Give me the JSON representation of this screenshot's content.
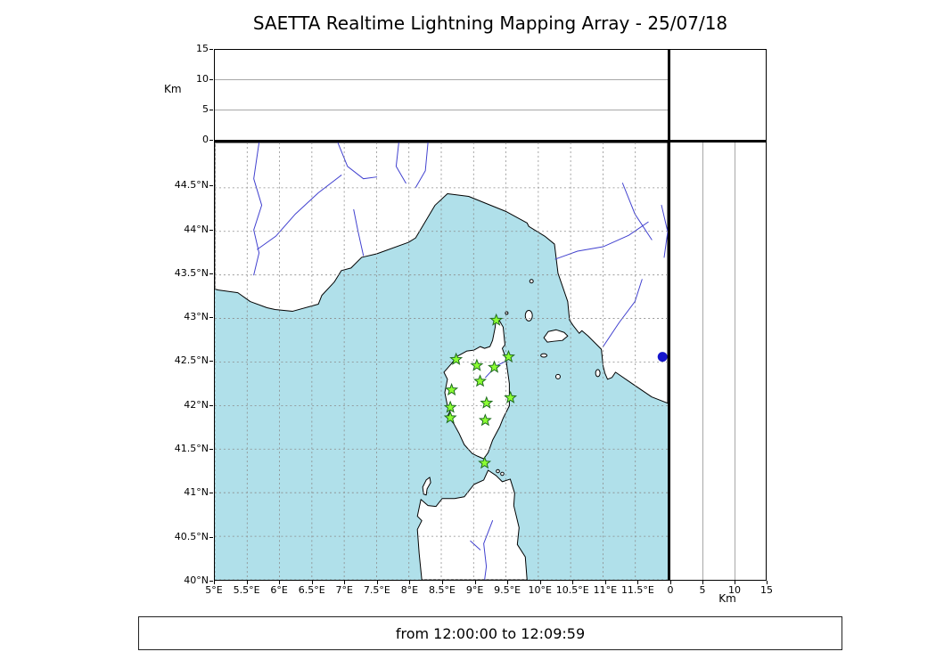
{
  "colors": {
    "sea": "#b0e0ea",
    "land": "#ffffff",
    "coast": "#000000",
    "river": "#4040cf",
    "graticule": "#8a8a8a",
    "panel_grid": "#a8a8a8",
    "station_fill": "#8cff32",
    "station_edge": "#1e6b1e",
    "source_fill": "#1515cc"
  },
  "chart_data": {
    "type": "scatter",
    "title": "SAETTA Realtime Lightning Mapping Array - 25/07/18",
    "subtitle": "from 12:00:00 to 12:09:59",
    "map": {
      "lon_range": [
        5.0,
        12.0
      ],
      "lat_range": [
        40.0,
        45.02
      ],
      "grid": "dashed",
      "lon_ticks": [
        {
          "value": 5.0,
          "label": "5°E"
        },
        {
          "value": 5.5,
          "label": "5.5°E"
        },
        {
          "value": 6.0,
          "label": "6°E"
        },
        {
          "value": 6.5,
          "label": "6.5°E"
        },
        {
          "value": 7.0,
          "label": "7°E"
        },
        {
          "value": 7.5,
          "label": "7.5°E"
        },
        {
          "value": 8.0,
          "label": "8°E"
        },
        {
          "value": 8.5,
          "label": "8.5°E"
        },
        {
          "value": 9.0,
          "label": "9°E"
        },
        {
          "value": 9.5,
          "label": "9.5°E"
        },
        {
          "value": 10.0,
          "label": "10°E"
        },
        {
          "value": 10.5,
          "label": "10.5°E"
        },
        {
          "value": 11.0,
          "label": "11°E"
        },
        {
          "value": 11.5,
          "label": "11.5°E"
        }
      ],
      "lat_ticks": [
        {
          "value": 40.0,
          "label": "40°N"
        },
        {
          "value": 40.5,
          "label": "40.5°N"
        },
        {
          "value": 41.0,
          "label": "41°N"
        },
        {
          "value": 41.5,
          "label": "41.5°N"
        },
        {
          "value": 42.0,
          "label": "42°N"
        },
        {
          "value": 42.5,
          "label": "42.5°N"
        },
        {
          "value": 43.0,
          "label": "43°N"
        },
        {
          "value": 43.5,
          "label": "43.5°N"
        },
        {
          "value": 44.0,
          "label": "44°N"
        },
        {
          "value": 44.5,
          "label": "44.5°N"
        }
      ]
    },
    "altitude_axis": {
      "label": "Km",
      "range": [
        0,
        15
      ],
      "ticks": [
        0,
        5,
        10,
        15
      ],
      "grid": [
        5,
        10
      ]
    },
    "stations": {
      "marker": "star",
      "points": [
        {
          "lon": 9.35,
          "lat": 42.98
        },
        {
          "lon": 8.73,
          "lat": 42.53
        },
        {
          "lon": 9.05,
          "lat": 42.46
        },
        {
          "lon": 9.32,
          "lat": 42.44
        },
        {
          "lon": 9.54,
          "lat": 42.56
        },
        {
          "lon": 9.1,
          "lat": 42.28
        },
        {
          "lon": 8.66,
          "lat": 42.18
        },
        {
          "lon": 9.57,
          "lat": 42.09
        },
        {
          "lon": 9.2,
          "lat": 42.03
        },
        {
          "lon": 8.64,
          "lat": 41.98
        },
        {
          "lon": 8.64,
          "lat": 41.86
        },
        {
          "lon": 9.18,
          "lat": 41.83
        },
        {
          "lon": 9.17,
          "lat": 41.34
        }
      ]
    },
    "sources": {
      "marker": "circle",
      "points": [
        {
          "lon": 11.92,
          "lat": 42.56
        }
      ]
    }
  }
}
